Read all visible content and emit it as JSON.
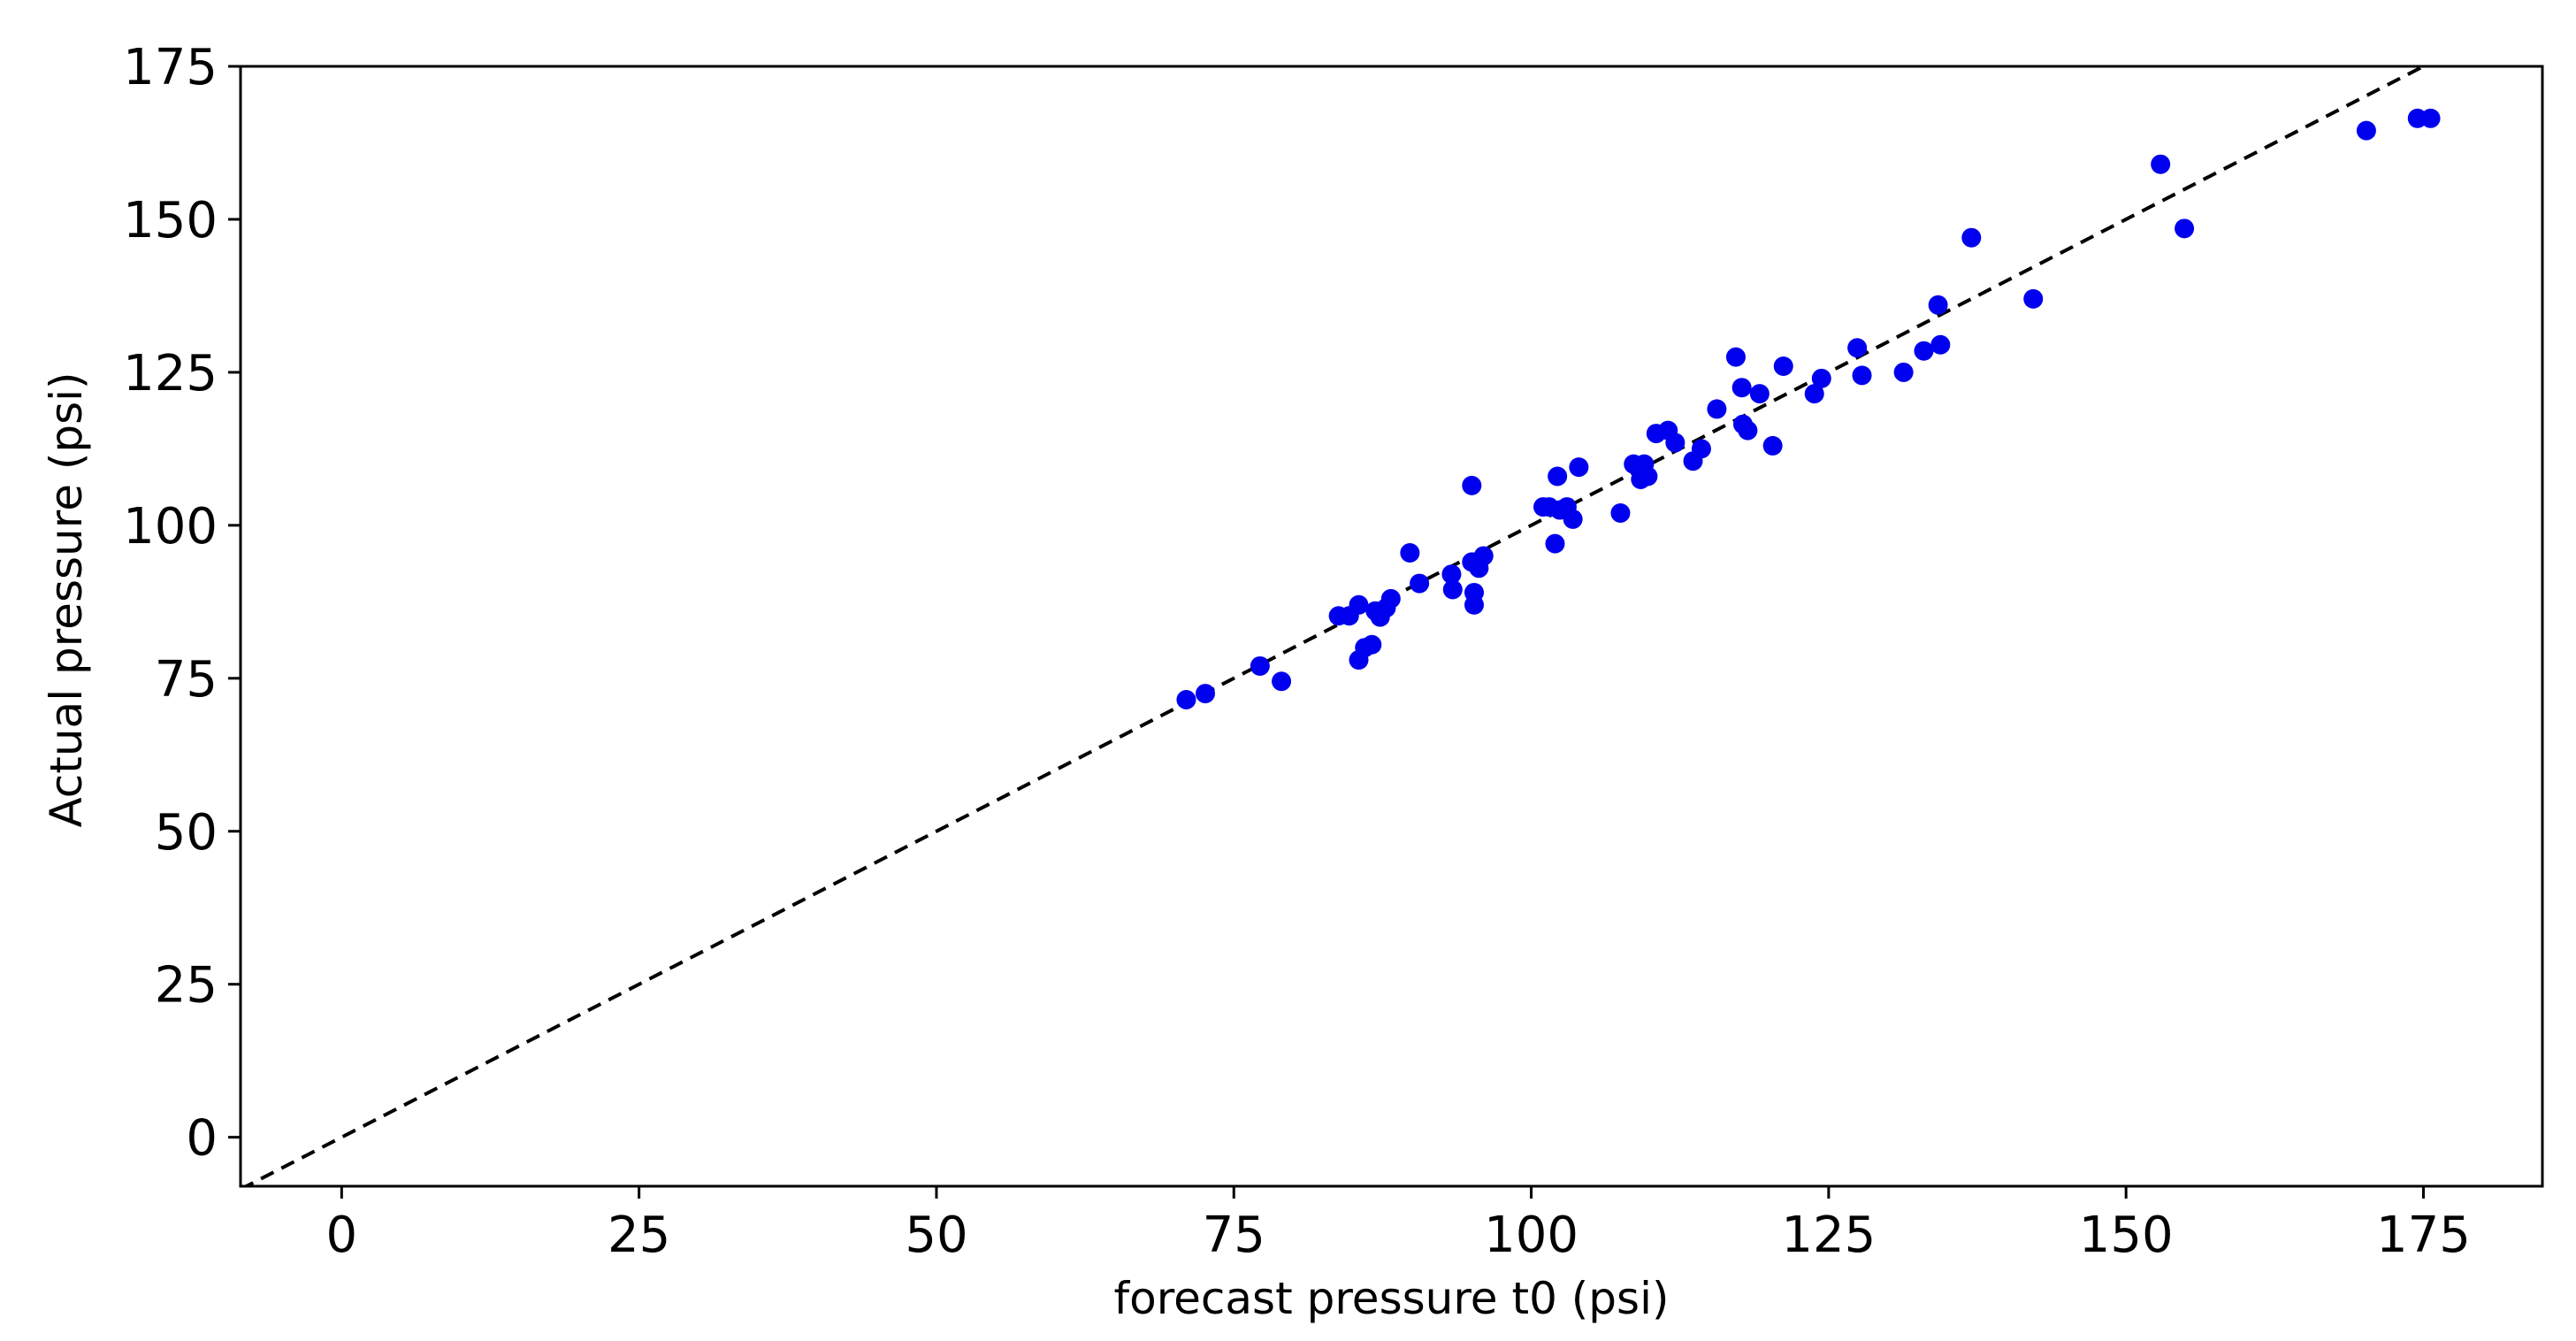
{
  "chart_data": {
    "type": "scatter",
    "title": "",
    "xlabel": "forecast pressure t0 (psi)",
    "ylabel": "Actual pressure (psi)",
    "xlim": [
      -8.5,
      185
    ],
    "ylim": [
      -8,
      175
    ],
    "xticks": [
      0,
      25,
      50,
      75,
      100,
      125,
      150,
      175
    ],
    "yticks": [
      0,
      25,
      50,
      75,
      100,
      125,
      150,
      175
    ],
    "grid": false,
    "legend": "none",
    "reference_line": {
      "x": [
        -8.5,
        185
      ],
      "y": [
        -8.5,
        185
      ],
      "style": "dashed",
      "color": "#000000"
    },
    "point_color": "#0000ee",
    "series": [
      {
        "x": [
          71.0,
          72.6,
          77.2,
          79.0,
          83.8,
          84.7,
          85.5,
          85.5,
          86.0,
          86.6,
          86.9,
          87.3,
          87.8,
          88.2,
          89.8,
          90.6,
          93.3,
          93.4,
          95.0,
          95.0,
          95.2,
          95.2,
          95.6,
          96.0,
          101.0,
          101.5,
          102.0,
          102.2,
          102.4,
          103.0,
          103.5,
          104.0,
          107.5,
          108.6,
          109.2,
          109.5,
          109.8,
          110.5,
          111.5,
          112.1,
          113.6,
          114.3,
          115.6,
          117.2,
          117.7,
          117.8,
          118.2,
          119.2,
          120.3,
          121.2,
          123.8,
          124.4,
          127.4,
          127.8,
          131.3,
          133.0,
          134.2,
          134.4,
          137.0,
          142.2,
          152.9,
          154.9,
          170.2,
          174.5,
          175.6
        ],
        "y": [
          71.5,
          72.5,
          77.0,
          74.5,
          85.2,
          85.2,
          87.0,
          78.0,
          80.0,
          80.5,
          86.0,
          85.0,
          86.5,
          88.0,
          95.5,
          90.5,
          92.0,
          89.5,
          106.5,
          94.0,
          89.0,
          87.0,
          93.0,
          95.0,
          103.0,
          103.0,
          97.0,
          108.0,
          102.5,
          103.0,
          101.0,
          109.5,
          102.0,
          110.0,
          107.5,
          110.0,
          108.0,
          115.0,
          115.5,
          113.5,
          110.5,
          112.5,
          119.0,
          127.5,
          122.5,
          116.5,
          115.5,
          121.5,
          113.0,
          126.0,
          121.5,
          124.0,
          129.0,
          124.5,
          125.0,
          128.5,
          136.0,
          129.5,
          147.0,
          137.0,
          159.0,
          148.5,
          164.5,
          166.5,
          166.5
        ]
      }
    ]
  }
}
